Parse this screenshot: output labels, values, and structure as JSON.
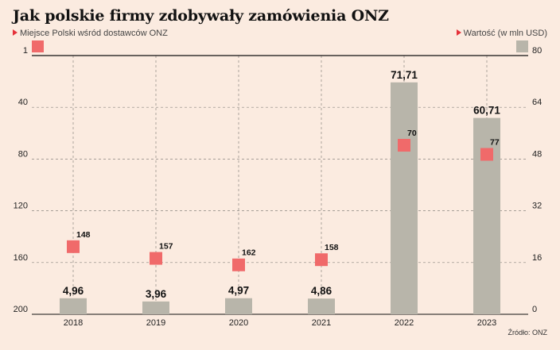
{
  "chart_data": {
    "type": "bar",
    "title": "Jak polskie firmy zdobywały zamówienia ONZ",
    "categories": [
      "2018",
      "2019",
      "2020",
      "2021",
      "2022",
      "2023"
    ],
    "series": [
      {
        "name": "Wartość (w mln USD)",
        "type": "bar",
        "axis": "right",
        "values": [
          4.96,
          3.96,
          4.97,
          4.86,
          71.71,
          60.71
        ],
        "labels": [
          "4,96",
          "3,96",
          "4,97",
          "4,86",
          "71,71",
          "60,71"
        ],
        "color": "#b8b5aa"
      },
      {
        "name": "Miejsce Polski wśród dostawców ONZ",
        "type": "scatter",
        "axis": "left",
        "values": [
          148,
          157,
          162,
          158,
          70,
          77
        ],
        "labels": [
          "148",
          "157",
          "162",
          "158",
          "70",
          "77"
        ],
        "color": "#f06a6a"
      }
    ],
    "left_axis": {
      "ticks": [
        "1",
        "40",
        "80",
        "120",
        "160",
        "200"
      ],
      "inverted": true,
      "ylim": [
        1,
        200
      ]
    },
    "right_axis": {
      "ticks": [
        "80",
        "64",
        "48",
        "32",
        "16",
        "0"
      ],
      "ylim": [
        0,
        80
      ]
    },
    "grid": true,
    "legend_position": "top"
  },
  "legend": {
    "rank_label": "Miejsce Polski wśród dostawców ONZ",
    "value_label": "Wartość (w mln USD)"
  },
  "source": "Źródło: ONZ"
}
